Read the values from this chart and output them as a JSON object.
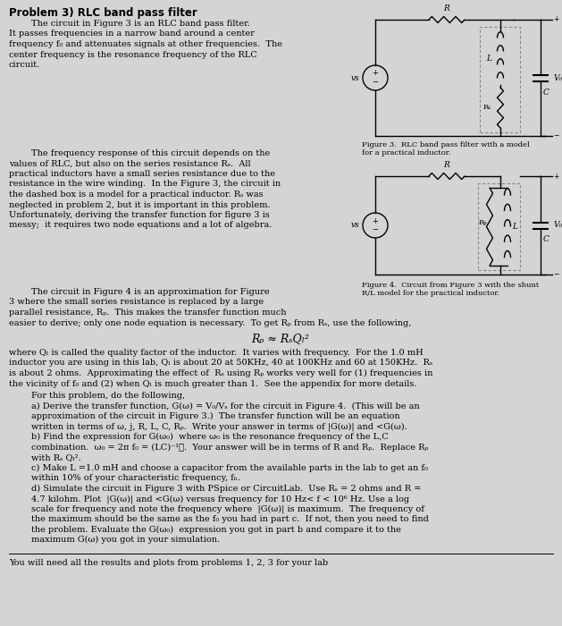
{
  "title": "Problem 3) RLC band pass filter",
  "bg_color": "#d4d4d4",
  "text_color": "#000000",
  "fig3_caption": "Figure 3.  RLC band pass filter with a model\nfor a practical inductor.",
  "fig4_caption": "Figure 4.  Circuit from Figure 3 with the shunt\nR/L model for the practical inductor.",
  "footer": "You will need all the results and plots from problems 1, 2, 3 for your lab",
  "para1_lines": [
    "        The circuit in Figure 3 is an RLC band pass filter.",
    "It passes frequencies in a narrow band around a center",
    "frequency f₀ and attenuates signals at other frequencies.  The",
    "center frequency is the resonance frequency of the RLC",
    "circuit."
  ],
  "para2_lines": [
    "        The frequency response of this circuit depends on the",
    "values of RLC, but also on the series resistance Rₛ.  All",
    "practical inductors have a small series resistance due to the",
    "resistance in the wire winding.  In the Figure 3, the circuit in",
    "the dashed box is a model for a practical inductor. Rₛ was",
    "neglected in problem 2, but it is important in this problem.",
    "Unfortunately, deriving the transfer function for figure 3 is",
    "messy;  it requires two node equations and a lot of algebra."
  ],
  "para3_lines": [
    "        The circuit in Figure 4 is an approximation for Figure",
    "3 where the small series resistance is replaced by a large",
    "parallel resistance, Rₚ.  This makes the transfer function much",
    "easier to derive; only one node equation is necessary.  To get Rₚ from Rₛ, use the following,"
  ],
  "equation": "Rₚ ≈ RₛQₗ²",
  "para4_lines": [
    "where Qₗ is called the quality factor of the inductor.  It varies with frequency.  For the 1.0 mH",
    "inductor you are using in this lab, Qₗ is about 20 at 50KHz, 40 at 100KHz and 60 at 150KHz.  Rₛ",
    "is about 2 ohms.  Approximating the effect of  Rₛ using Rₚ works very well for (1) frequencies in",
    "the vicinity of f₀ and (2) when Qₗ is much greater than 1.  See the appendix for more details."
  ],
  "para5_lines": [
    "        For this problem, do the following,",
    "        a) Derive the transfer function, G(ω) = V₀/Vₛ for the circuit in Figure 4.  (This will be an",
    "        approximation of the circuit in Figure 3.)  The transfer function will be an equation",
    "        written in terms of ω, j, R, L, C, Rₚ.  Write your answer in terms of |G(ω)| and <G(ω).",
    "        b) Find the expression for G(ω₀)  where ω₀ is the resonance frequency of the L,C",
    "        combination.  ω₀ = 2π f₀ = (LC)⁻¹ᐟ.  Your answer will be in terms of R and Rₚ.  Replace Rₚ",
    "        with Rₛ Qₗ².",
    "        c) Make L =1.0 mH and choose a capacitor from the available parts in the lab to get an f₀",
    "        within 10% of your characteristic frequency, fₕ.",
    "        d) Simulate the circuit in Figure 3 with PSpice or CircuitLab.  Use Rₛ = 2 ohms and R =",
    "        4.7 kilohm. Plot  |G(ω)| and <G(ω) versus frequency for 10 Hz< f < 10⁶ Hz. Use a log",
    "        scale for frequency and note the frequency where  |G(ω)| is maximum.  The frequency of",
    "        the maximum should be the same as the f₀ you had in part c.  If not, then you need to find",
    "        the problem. Evaluate the G(ω₀)  expression you got in part b and compare it to the",
    "        maximum G(ω) you got in your simulation."
  ]
}
